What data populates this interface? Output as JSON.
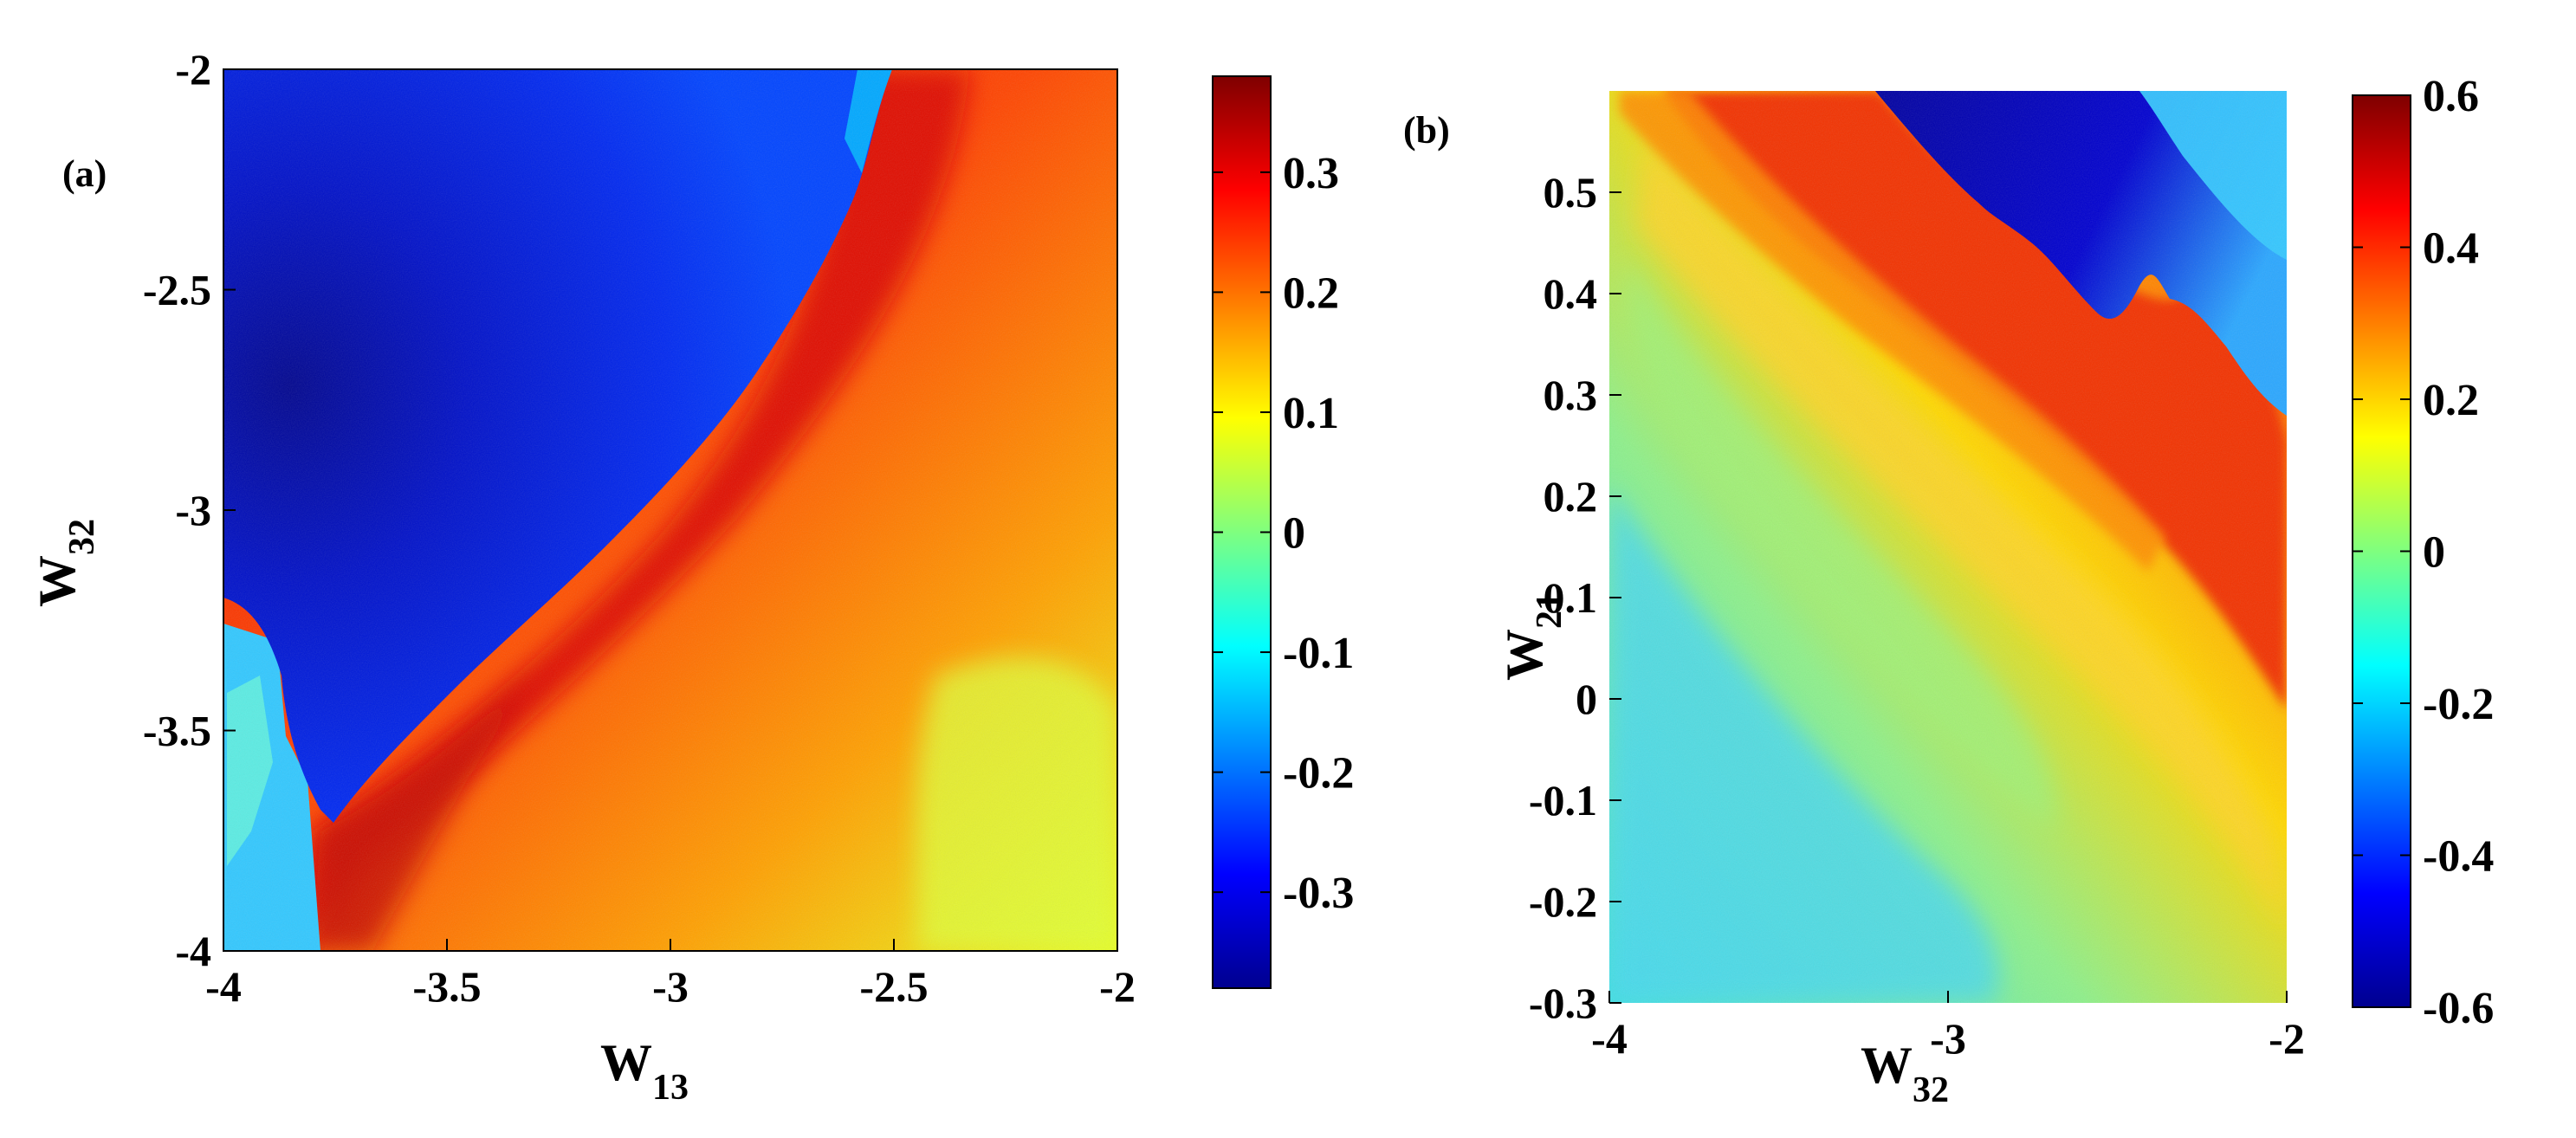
{
  "colors": {
    "jet": [
      "#00008f",
      "#0000ff",
      "#007fff",
      "#00ffff",
      "#7fff7f",
      "#ffff00",
      "#ff7f00",
      "#ff0000",
      "#7f0000"
    ]
  },
  "chart_data": [
    {
      "type": "heatmap",
      "panel_label": "(a)",
      "xlabel": {
        "base": "W",
        "sub": "13"
      },
      "ylabel": {
        "base": "W",
        "sub": "32"
      },
      "xlim": [
        -4,
        -2
      ],
      "ylim": [
        -4,
        -2
      ],
      "xticks": [
        "-4",
        "-3.5",
        "-3",
        "-2.5",
        "-2"
      ],
      "yticks": [
        "-2",
        "-2.5",
        "-3",
        "-3.5",
        "-4"
      ],
      "colorbar": {
        "range": [
          -0.38,
          0.38
        ],
        "ticks": [
          "0.3",
          "0.2",
          "0.1",
          "0",
          "-0.1",
          "-0.2",
          "-0.3"
        ]
      },
      "regions": [
        {
          "name": "negative basin (upper-left)",
          "value": -0.34
        },
        {
          "name": "boundary band",
          "value": 0.32
        },
        {
          "name": "positive plateau (lower-right)",
          "value": 0.22
        },
        {
          "name": "lower-left corner",
          "value": -0.15
        }
      ]
    },
    {
      "type": "heatmap",
      "panel_label": "(b)",
      "xlabel": {
        "base": "W",
        "sub": "32"
      },
      "ylabel": {
        "base": "W",
        "sub": "21"
      },
      "xlim": [
        -4,
        -2
      ],
      "ylim": [
        -0.3,
        0.6
      ],
      "xticks": [
        "-4",
        "-3",
        "-2"
      ],
      "yticks": [
        "0.5",
        "0.4",
        "0.3",
        "0.2",
        "0.1",
        "0",
        "-0.1",
        "-0.2",
        "-0.3"
      ],
      "colorbar": {
        "range": [
          -0.6,
          0.6
        ],
        "ticks": [
          "0.6",
          "0.4",
          "0.2",
          "0",
          "-0.2",
          "-0.4",
          "-0.6"
        ]
      },
      "regions": [
        {
          "name": "negative band (top-right)",
          "value": -0.55
        },
        {
          "name": "positive band",
          "value": 0.45
        },
        {
          "name": "middle band",
          "value": 0.2
        },
        {
          "name": "lower-left region",
          "value": -0.1
        }
      ]
    }
  ]
}
